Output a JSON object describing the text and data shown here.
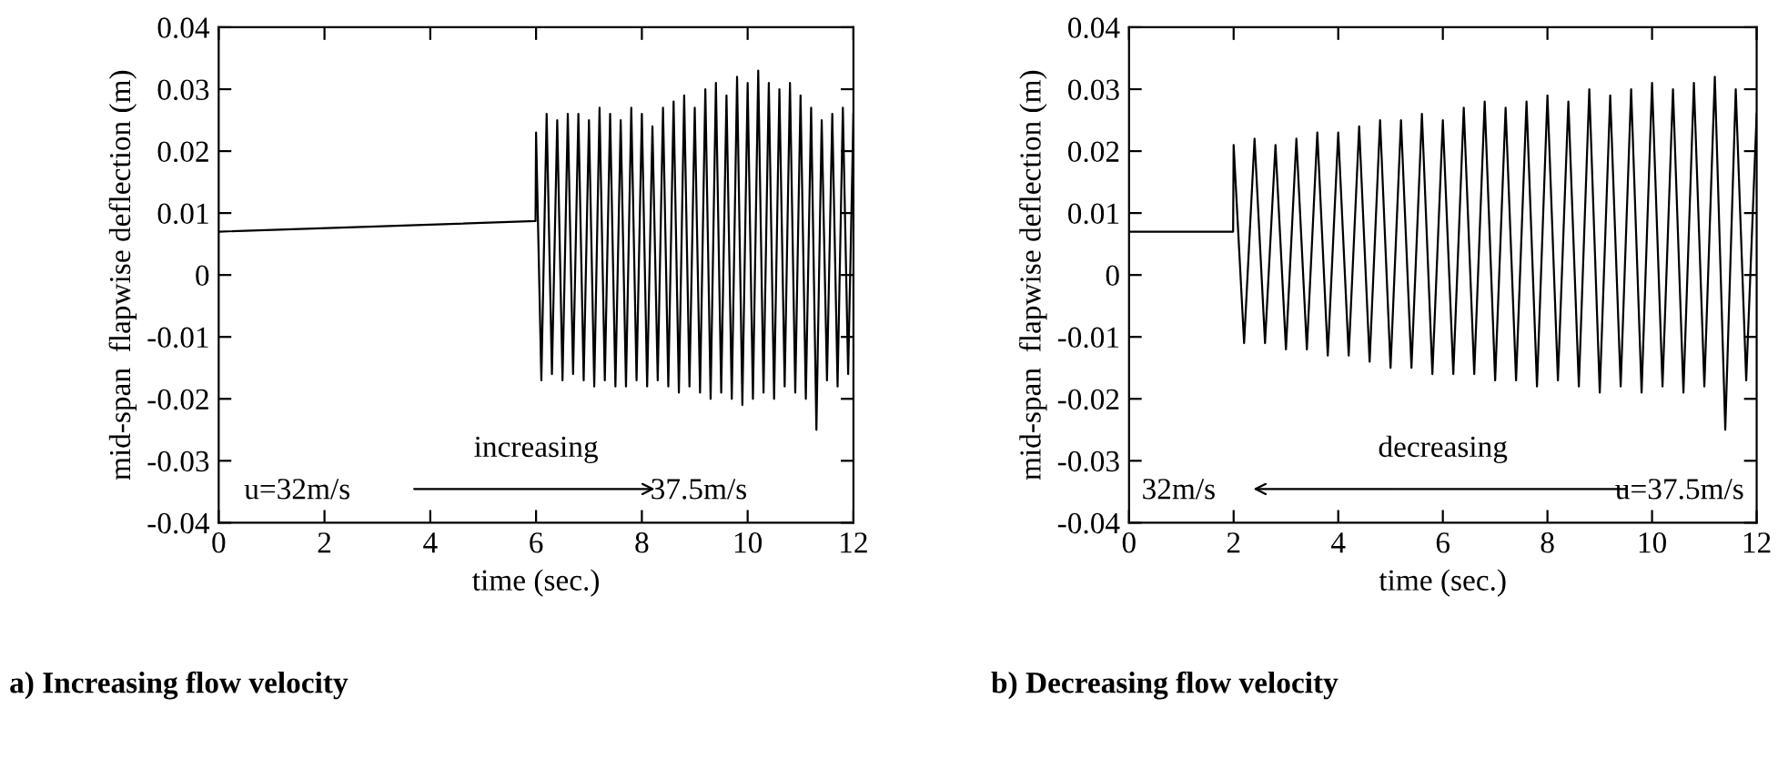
{
  "chart_data": [
    {
      "type": "line",
      "title": "a) Increasing flow velocity",
      "xlabel": "time (sec.)",
      "ylabel": "mid-span  flapwise deflection (m)",
      "series": [
        {
          "color": "#000000",
          "x": [
            0,
            5.99,
            6.0,
            6.1,
            6.2,
            6.3,
            6.4,
            6.5,
            6.6,
            6.7,
            6.8,
            6.9,
            7.0,
            7.1,
            7.2,
            7.3,
            7.4,
            7.5,
            7.6,
            7.7,
            7.8,
            7.9,
            8.0,
            8.1,
            8.2,
            8.3,
            8.4,
            8.5,
            8.6,
            8.7,
            8.8,
            8.9,
            9.0,
            9.1,
            9.2,
            9.3,
            9.4,
            9.5,
            9.6,
            9.7,
            9.8,
            9.9,
            10.0,
            10.1,
            10.2,
            10.3,
            10.4,
            10.5,
            10.6,
            10.7,
            10.8,
            10.9,
            11.0,
            11.1,
            11.2,
            11.3,
            11.4,
            11.5,
            11.6,
            11.7,
            11.8,
            11.9,
            12.0
          ],
          "values": [
            0.007,
            0.0087,
            0.023,
            -0.017,
            0.026,
            -0.016,
            0.025,
            -0.017,
            0.026,
            -0.016,
            0.026,
            -0.017,
            0.025,
            -0.018,
            0.027,
            -0.017,
            0.026,
            -0.018,
            0.025,
            -0.018,
            0.027,
            -0.017,
            0.026,
            -0.018,
            0.024,
            -0.017,
            0.027,
            -0.018,
            0.028,
            -0.019,
            0.029,
            -0.018,
            0.027,
            -0.019,
            0.03,
            -0.02,
            0.031,
            -0.019,
            0.029,
            -0.02,
            0.032,
            -0.021,
            0.031,
            -0.02,
            0.033,
            -0.019,
            0.031,
            -0.02,
            0.03,
            -0.018,
            0.031,
            -0.019,
            0.029,
            -0.02,
            0.027,
            -0.025,
            0.025,
            -0.017,
            0.026,
            -0.018,
            0.027,
            -0.016,
            0.026
          ]
        }
      ],
      "xlim": [
        0,
        12
      ],
      "xticks": [
        0,
        2,
        4,
        6,
        8,
        10,
        12
      ],
      "ylim": [
        -0.04,
        0.04
      ],
      "yticks": [
        -0.04,
        -0.03,
        -0.02,
        -0.01,
        0,
        0.01,
        0.02,
        0.03,
        0.04
      ],
      "annotations": [
        "u=32m/s",
        "increasing",
        "37.5m/s"
      ],
      "grid": false,
      "legend": false
    },
    {
      "type": "line",
      "title": "b) Decreasing flow velocity",
      "xlabel": "time (sec.)",
      "ylabel": "mid-span  flapwise deflection (m)",
      "series": [
        {
          "color": "#000000",
          "x": [
            0,
            1.99,
            2.0,
            2.2,
            2.4,
            2.6,
            2.8,
            3.0,
            3.2,
            3.4,
            3.6,
            3.8,
            4.0,
            4.2,
            4.4,
            4.6,
            4.8,
            5.0,
            5.2,
            5.4,
            5.6,
            5.8,
            6.0,
            6.2,
            6.4,
            6.6,
            6.8,
            7.0,
            7.2,
            7.4,
            7.6,
            7.8,
            8.0,
            8.2,
            8.4,
            8.6,
            8.8,
            9.0,
            9.2,
            9.4,
            9.6,
            9.8,
            10.0,
            10.2,
            10.4,
            10.6,
            10.8,
            11.0,
            11.2,
            11.4,
            11.6,
            11.8,
            12.0
          ],
          "values": [
            0.007,
            0.007,
            0.021,
            -0.011,
            0.022,
            -0.011,
            0.021,
            -0.012,
            0.022,
            -0.012,
            0.023,
            -0.013,
            0.023,
            -0.013,
            0.024,
            -0.014,
            0.025,
            -0.015,
            0.025,
            -0.015,
            0.026,
            -0.016,
            0.025,
            -0.016,
            0.027,
            -0.016,
            0.028,
            -0.017,
            0.027,
            -0.017,
            0.028,
            -0.018,
            0.029,
            -0.017,
            0.028,
            -0.018,
            0.03,
            -0.019,
            0.029,
            -0.018,
            0.03,
            -0.019,
            0.031,
            -0.018,
            0.03,
            -0.019,
            0.031,
            -0.018,
            0.032,
            -0.025,
            0.03,
            -0.017,
            0.026
          ]
        }
      ],
      "xlim": [
        0,
        12
      ],
      "xticks": [
        0,
        2,
        4,
        6,
        8,
        10,
        12
      ],
      "ylim": [
        -0.04,
        0.04
      ],
      "yticks": [
        -0.04,
        -0.03,
        -0.02,
        -0.01,
        0,
        0.01,
        0.02,
        0.03,
        0.04
      ],
      "annotations": [
        "32m/s",
        "decreasing",
        "u=37.5m/s"
      ],
      "grid": false,
      "legend": false
    }
  ]
}
